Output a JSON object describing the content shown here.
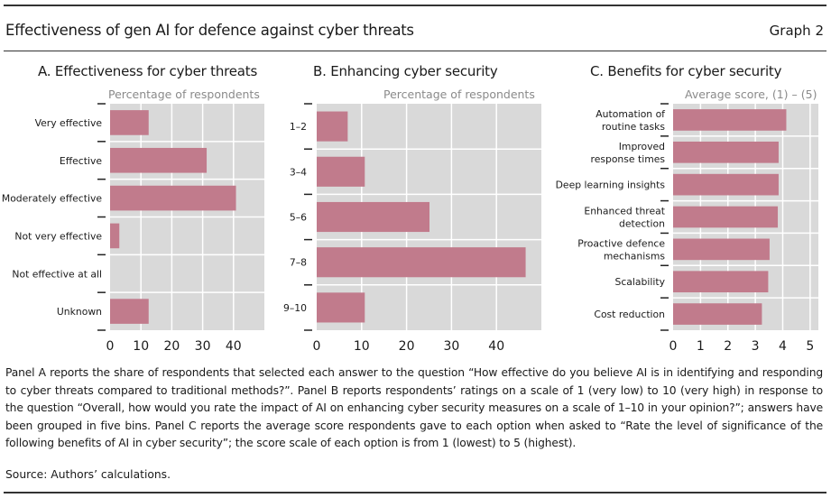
{
  "header": {
    "title": "Effectiveness of gen AI for defence against cyber threats",
    "graph_number": "Graph 2"
  },
  "footer": {
    "note": "Panel A reports the share of respondents that selected each answer to the question “How effective do you believe AI is in identifying and responding to cyber threats compared to traditional methods?”. Panel B reports respondents’ ratings on a scale of 1 (very low) to 10 (very high) in response to the question “Overall, how would you rate the impact of AI on enhancing cyber security measures on a scale of 1–10 in your opinion?”; answers have been grouped in five bins. Panel C reports the average score respondents gave to each option when asked to “Rate the level of significance of the following benefits of AI in cyber security”; the score scale of each option is from 1 (lowest) to 5 (highest).",
    "source": "Source: Authors’ calculations."
  },
  "colors": {
    "bar": "#c17b8c",
    "plot_bg": "#d9d9d9",
    "grid": "#ffffff"
  },
  "chart_data": [
    {
      "type": "bar",
      "orientation": "horizontal",
      "title": "A. Effectiveness for cyber threats",
      "xlabel": "Percentage of respondents",
      "categories": [
        "Very effective",
        "Effective",
        "Moderately effective",
        "Not very effective",
        "Not effective at all",
        "Unknown"
      ],
      "values": [
        12.5,
        31.3,
        40.8,
        3.0,
        0,
        12.5
      ],
      "xlim": [
        0,
        50
      ],
      "xticks": [
        0,
        10,
        20,
        30,
        40
      ],
      "grid": true
    },
    {
      "type": "bar",
      "orientation": "horizontal",
      "title": "B. Enhancing cyber security",
      "xlabel": "Percentage of respondents",
      "categories": [
        "1–2",
        "3–4",
        "5–6",
        "7–8",
        "9–10"
      ],
      "values": [
        6.9,
        10.7,
        25.1,
        46.5,
        10.7
      ],
      "xlim": [
        0,
        50
      ],
      "xticks": [
        0,
        10,
        20,
        30,
        40
      ],
      "grid": true
    },
    {
      "type": "bar",
      "orientation": "horizontal",
      "title": "C. Benefits for cyber security",
      "xlabel": "Average score, (1) – (5)",
      "categories": [
        [
          "Automation of",
          "routine tasks"
        ],
        [
          "Improved",
          "response times"
        ],
        [
          "Deep learning insights"
        ],
        [
          "Enhanced threat",
          "detection"
        ],
        [
          "Proactive defence",
          "mechanisms"
        ],
        [
          "Scalability"
        ],
        [
          "Cost reduction"
        ]
      ],
      "values": [
        4.13,
        3.85,
        3.85,
        3.82,
        3.52,
        3.47,
        3.24
      ],
      "xlim": [
        0,
        5.3
      ],
      "xticks": [
        0,
        1,
        2,
        3,
        4,
        5
      ],
      "grid": true
    }
  ]
}
